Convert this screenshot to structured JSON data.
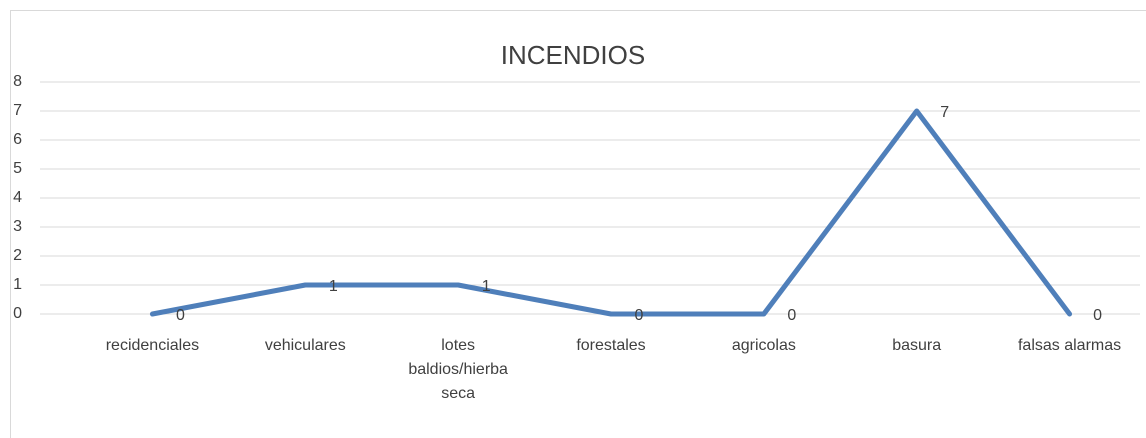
{
  "chart_data": {
    "type": "line",
    "title": "INCENDIOS",
    "categories": [
      "recidenciales",
      "vehiculares",
      "lotes baldios/hierba seca",
      "forestales",
      "agricolas",
      "basura",
      "falsas alarmas"
    ],
    "series": [
      {
        "name": "INCENDIOS",
        "color": "#4f7fba",
        "values": [
          0,
          1,
          1,
          0,
          0,
          7,
          0
        ]
      }
    ],
    "ylim": [
      0,
      8
    ],
    "yticks": [
      0,
      1,
      2,
      3,
      4,
      5,
      6,
      7,
      8
    ],
    "grid": true,
    "data_labels": true
  }
}
